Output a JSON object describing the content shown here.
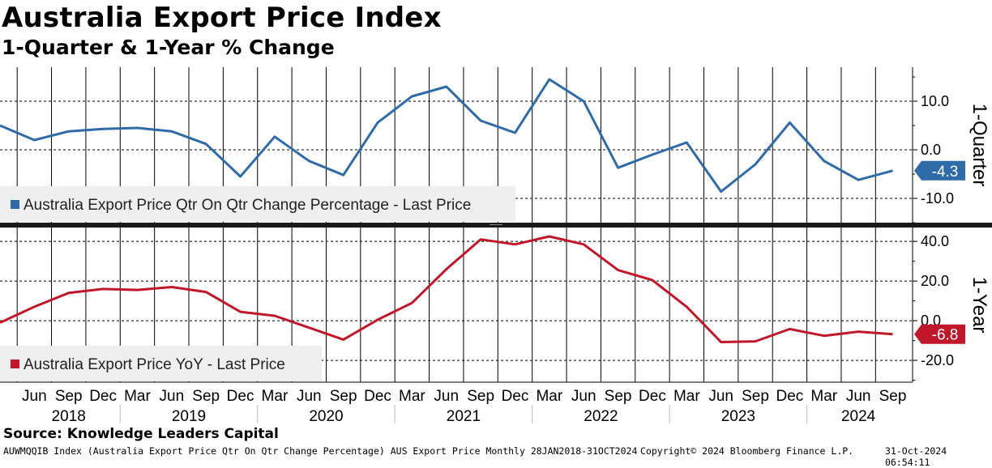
{
  "title": "Australia Export Price Index",
  "subtitle": "1-Quarter & 1-Year % Change",
  "source": "Source: Knowledge Leaders Capital",
  "footer": {
    "left": "AUWMQQIB Index (Australia Export Price Qtr On Qtr Change Percentage) AUS Export Price  Monthly 28JAN2018-31OCT2024",
    "middle": "Copyright© 2024 Bloomberg Finance L.P.",
    "right": "31-Oct-2024 06:54:11"
  },
  "chart_data": [
    {
      "type": "line",
      "panel": "top",
      "axis_title": "1-Quarter",
      "ylim": [
        -15,
        17
      ],
      "ticks": [
        10,
        0,
        -10
      ],
      "tick_labels": [
        "10.0",
        "0.0",
        "-10.0"
      ],
      "grid": true,
      "legend": "bottom-left",
      "series": [
        {
          "name": "Australia Export Price Qtr On Qtr Change Percentage - Last Price",
          "color": "#2e6ba8",
          "last_label": "-4.3",
          "values": [
            5.0,
            2.0,
            3.8,
            4.3,
            4.5,
            3.8,
            1.2,
            -5.5,
            2.7,
            -2.3,
            -5.2,
            5.6,
            11.0,
            13.0,
            6.0,
            3.5,
            14.5,
            10.0,
            -3.7,
            -1.0,
            1.5,
            -8.6,
            -3.0,
            5.6,
            -2.3,
            -6.2,
            -4.3
          ]
        }
      ]
    },
    {
      "type": "line",
      "panel": "bottom",
      "axis_title": "1-Year",
      "ylim": [
        -31,
        47
      ],
      "ticks": [
        40,
        20,
        0,
        -20
      ],
      "tick_labels": [
        "40.0",
        "20.0",
        "0.0",
        "-20.0"
      ],
      "grid": true,
      "legend": "bottom-left",
      "series": [
        {
          "name": "Australia Export Price YoY - Last Price",
          "color": "#c0182a",
          "last_label": "-6.8",
          "values": [
            -1.0,
            7.0,
            14.0,
            16.0,
            15.5,
            17.0,
            14.5,
            4.5,
            2.5,
            -3.5,
            -9.5,
            0.5,
            9.0,
            26.0,
            41.0,
            38.5,
            42.5,
            38.5,
            25.5,
            20.5,
            7.0,
            -10.8,
            -10.4,
            -4.2,
            -7.6,
            -5.5,
            -6.8
          ]
        }
      ]
    }
  ],
  "x_axis": {
    "quarter_labels": [
      "Jun",
      "Sep",
      "Dec",
      "Mar",
      "Jun",
      "Sep",
      "Dec",
      "Mar",
      "Jun",
      "Sep",
      "Dec",
      "Mar",
      "Jun",
      "Sep",
      "Dec",
      "Mar",
      "Jun",
      "Sep",
      "Dec",
      "Mar",
      "Jun",
      "Sep",
      "Dec",
      "Mar",
      "Jun",
      "Sep"
    ],
    "years": [
      "2018",
      "2019",
      "2020",
      "2021",
      "2022",
      "2023",
      "2024"
    ]
  }
}
